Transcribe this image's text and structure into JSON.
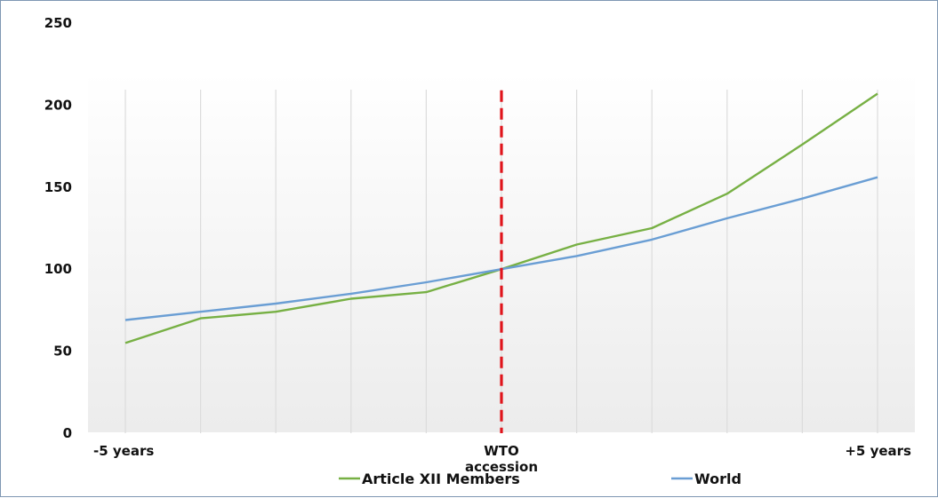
{
  "chart_data": {
    "type": "line",
    "title": "",
    "xlabel": "",
    "ylabel": "",
    "x": [
      -5,
      -4,
      -3,
      -2,
      -1,
      0,
      1,
      2,
      3,
      4,
      5
    ],
    "x_tick_labels": [
      {
        "x": -5,
        "label": "-5 years"
      },
      {
        "x": 0,
        "label": "WTO accession"
      },
      {
        "x": 5,
        "label": "+5 years"
      }
    ],
    "y_ticks": [
      0,
      50,
      100,
      150,
      200,
      250
    ],
    "ylim": [
      0,
      250
    ],
    "grid": "vertical",
    "legend_position": "bottom",
    "annotations": [
      {
        "type": "vertical-dashed-line",
        "x": 0,
        "y_range": [
          0,
          209
        ],
        "color": "#e0141b"
      }
    ],
    "series": [
      {
        "name": "Article XII Members",
        "color": "#77b044",
        "values": [
          55,
          70,
          74,
          82,
          86,
          100,
          115,
          125,
          146,
          176,
          207
        ]
      },
      {
        "name": "World",
        "color": "#6a9ed4",
        "values": [
          69,
          74,
          79,
          85,
          92,
          100,
          108,
          118,
          131,
          143,
          156
        ]
      }
    ]
  }
}
